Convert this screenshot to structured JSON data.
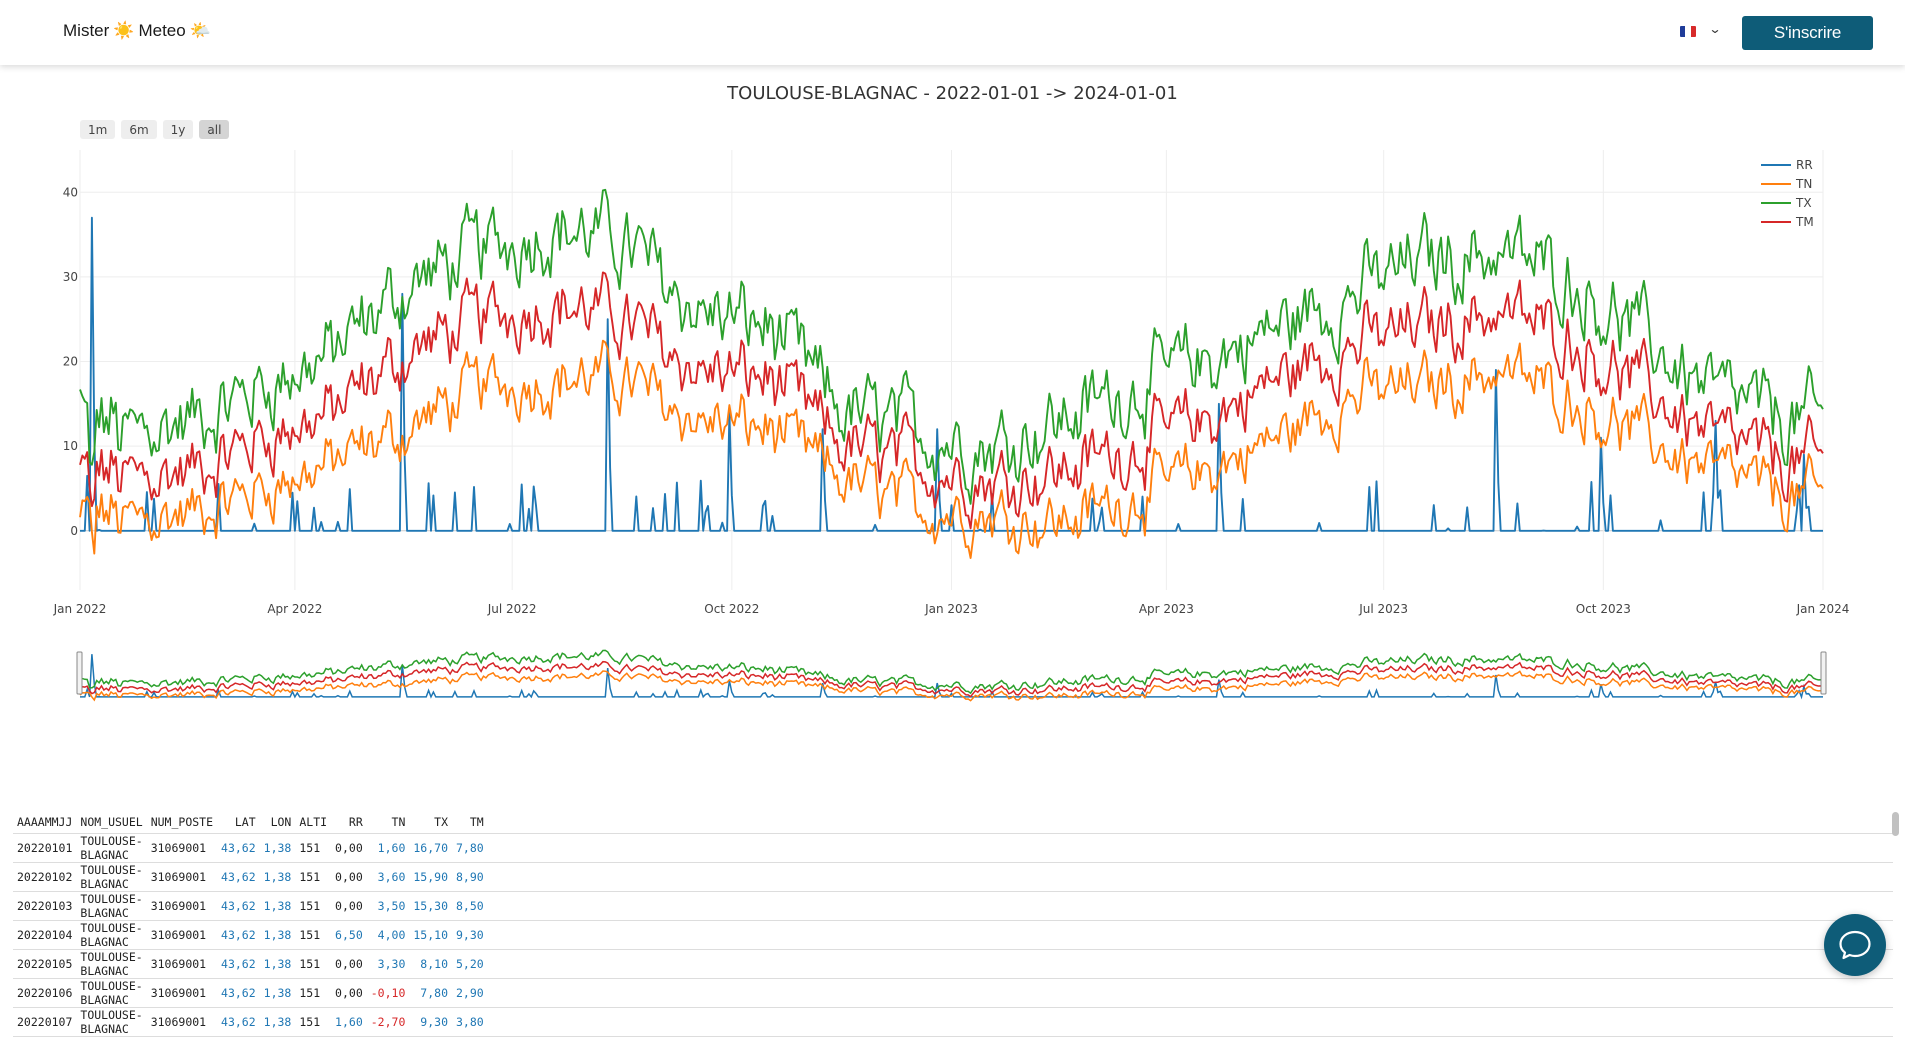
{
  "header": {
    "brand": "Mister",
    "brand_suffix": "Meteo",
    "signup_label": "S'inscrire",
    "flag_colors": [
      "#1f3c99",
      "#ffffff",
      "#d72b2b"
    ],
    "accent": "#0e5c78"
  },
  "chart_data": {
    "type": "line",
    "title": "TOULOUSE-BLAGNAC - 2022-01-01 -> 2024-01-01",
    "x_tick_labels": [
      "Jan 2022",
      "Apr 2022",
      "Jul 2022",
      "Oct 2022",
      "Jan 2023",
      "Apr 2023",
      "Jul 2023",
      "Oct 2023",
      "Jan 2024"
    ],
    "xlim": [
      "2022-01-01",
      "2024-01-01"
    ],
    "y_ticks": [
      0,
      10,
      20,
      30,
      40
    ],
    "ylim": [
      -7,
      45
    ],
    "range_selector": [
      "1m",
      "6m",
      "1y",
      "all"
    ],
    "range_selector_active": "all",
    "legend_position": "top-right",
    "series": [
      {
        "name": "RR",
        "color": "#1f77b4",
        "first_values": [
          0.0,
          0.0,
          0.0,
          6.5,
          0.0,
          0.0,
          1.6
        ],
        "spikes": [
          [
            5,
            37
          ],
          [
            135,
            28
          ],
          [
            221,
            25
          ],
          [
            272,
            14
          ],
          [
            311,
            12
          ],
          [
            359,
            12
          ],
          [
            477,
            15
          ],
          [
            593,
            19
          ],
          [
            637,
            11
          ],
          [
            685,
            13
          ],
          [
            722,
            9
          ]
        ]
      },
      {
        "name": "TN",
        "color": "#ff7f0e",
        "first_values": [
          1.6,
          3.6,
          3.5,
          4.0,
          3.3,
          -0.1,
          -2.7
        ],
        "monthly_means": [
          1,
          2,
          5,
          8,
          12,
          17,
          18,
          18,
          13,
          12,
          6,
          3,
          2,
          1,
          4,
          7,
          11,
          16,
          17,
          19,
          16,
          11,
          7,
          4
        ]
      },
      {
        "name": "TX",
        "color": "#2ca02c",
        "first_values": [
          16.7,
          15.9,
          15.3,
          15.1,
          8.1,
          7.8,
          9.3
        ],
        "monthly_means": [
          11,
          13,
          17,
          21,
          29,
          33,
          36,
          34,
          26,
          24,
          14,
          12,
          10,
          13,
          17,
          20,
          24,
          28,
          32,
          33,
          30,
          23,
          16,
          13
        ]
      },
      {
        "name": "TM",
        "color": "#d62728",
        "first_values": [
          7.8,
          8.9,
          8.5,
          9.3,
          5.2,
          2.9,
          3.8
        ],
        "monthly_means": [
          6,
          7,
          11,
          14,
          21,
          25,
          27,
          25,
          19,
          18,
          10,
          8,
          6,
          7,
          10,
          13,
          18,
          22,
          24,
          26,
          23,
          17,
          11,
          8
        ]
      }
    ]
  },
  "table": {
    "columns": [
      "AAAAMMJJ",
      "NOM_USUEL",
      "NUM_POSTE",
      "LAT",
      "LON",
      "ALTI",
      "RR",
      "TN",
      "TX",
      "TM"
    ],
    "rows": [
      [
        "20220101",
        "TOULOUSE-BLAGNAC",
        "31069001",
        "43,62",
        "1,38",
        "151",
        "0,00",
        "1,60",
        "16,70",
        "7,80"
      ],
      [
        "20220102",
        "TOULOUSE-BLAGNAC",
        "31069001",
        "43,62",
        "1,38",
        "151",
        "0,00",
        "3,60",
        "15,90",
        "8,90"
      ],
      [
        "20220103",
        "TOULOUSE-BLAGNAC",
        "31069001",
        "43,62",
        "1,38",
        "151",
        "0,00",
        "3,50",
        "15,30",
        "8,50"
      ],
      [
        "20220104",
        "TOULOUSE-BLAGNAC",
        "31069001",
        "43,62",
        "1,38",
        "151",
        "6,50",
        "4,00",
        "15,10",
        "9,30"
      ],
      [
        "20220105",
        "TOULOUSE-BLAGNAC",
        "31069001",
        "43,62",
        "1,38",
        "151",
        "0,00",
        "3,30",
        "8,10",
        "5,20"
      ],
      [
        "20220106",
        "TOULOUSE-BLAGNAC",
        "31069001",
        "43,62",
        "1,38",
        "151",
        "0,00",
        "-0,10",
        "7,80",
        "2,90"
      ],
      [
        "20220107",
        "TOULOUSE-BLAGNAC",
        "31069001",
        "43,62",
        "1,38",
        "151",
        "1,60",
        "-2,70",
        "9,30",
        "3,80"
      ]
    ]
  }
}
